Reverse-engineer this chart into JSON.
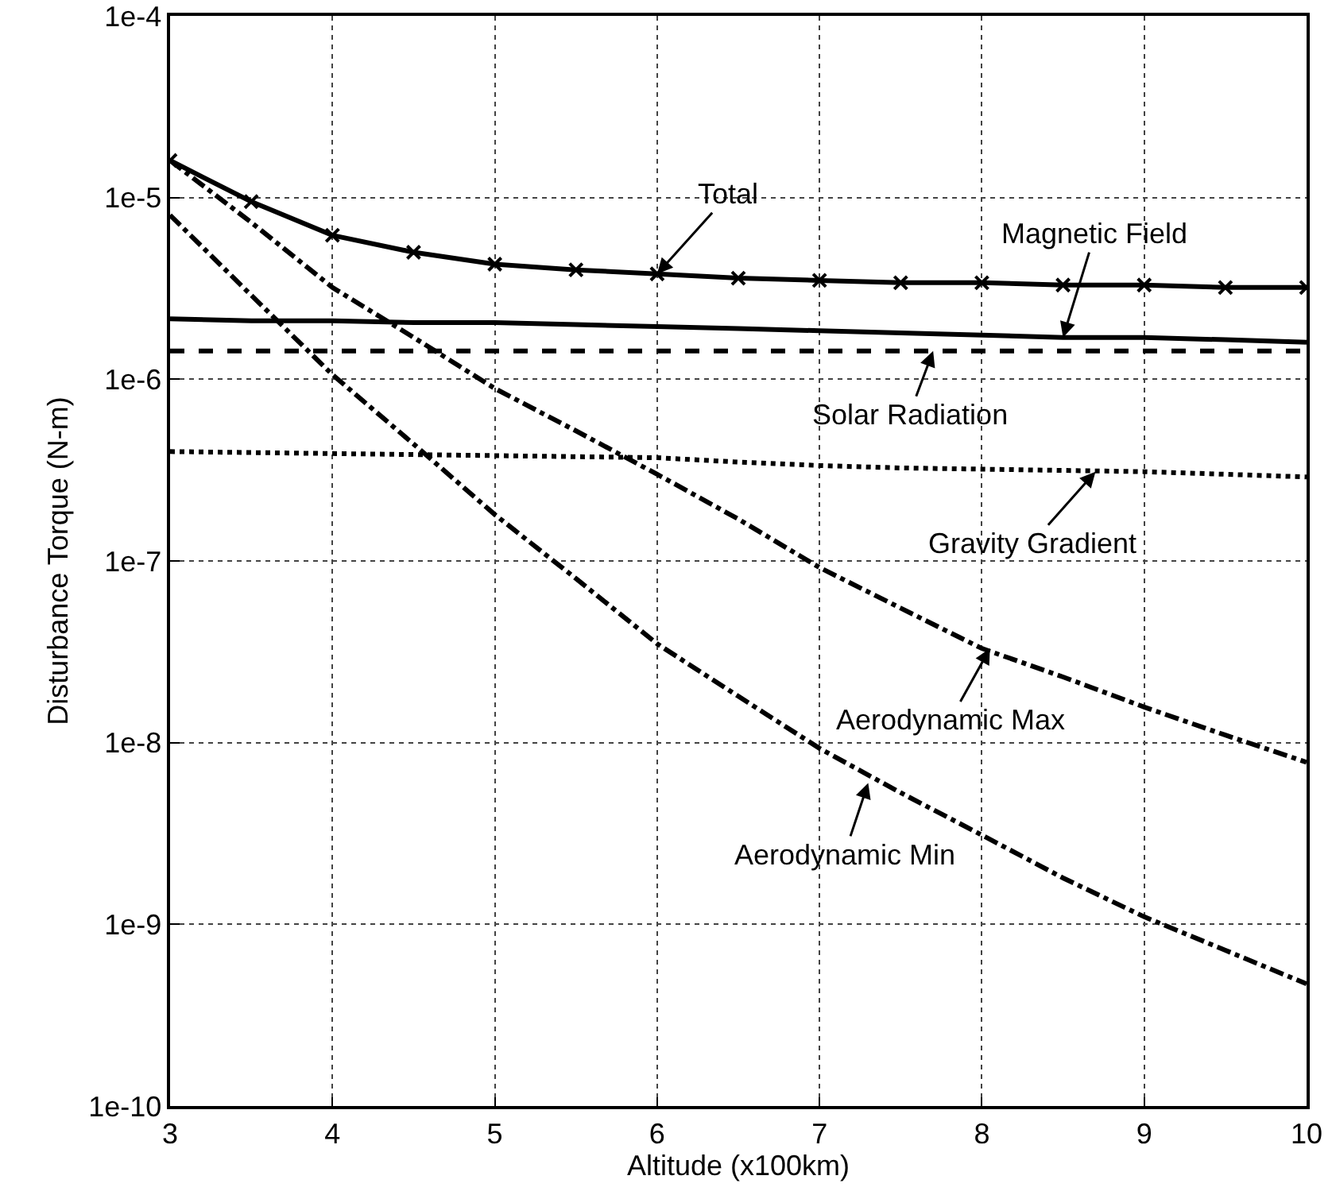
{
  "chart_data": {
    "type": "line",
    "xlabel": "Altitude (x100km)",
    "ylabel": "Disturbance Torque (N-m)",
    "x": [
      3,
      3.5,
      4,
      4.5,
      5,
      5.5,
      6,
      6.5,
      7,
      7.5,
      8,
      8.5,
      9,
      9.5,
      10
    ],
    "series": [
      {
        "color": "#000000",
        "line_style": "solid",
        "marker": "cross",
        "values": [
          1.6e-05,
          9.5e-06,
          6.2e-06,
          5e-06,
          4.3e-06,
          4e-06,
          3.8e-06,
          3.6e-06,
          3.5e-06,
          3.4e-06,
          3.4e-06,
          3.3e-06,
          3.3e-06,
          3.2e-06,
          3.2e-06
        ]
      },
      {
        "color": "#000000",
        "line_style": "solid",
        "values": [
          2.15e-06,
          2.1e-06,
          2.1e-06,
          2.05e-06,
          2.05e-06,
          2e-06,
          1.95e-06,
          1.9e-06,
          1.85e-06,
          1.8e-06,
          1.75e-06,
          1.7e-06,
          1.7e-06,
          1.65e-06,
          1.6e-06
        ]
      },
      {
        "color": "#000000",
        "line_style": "dashed",
        "values": [
          1.43e-06,
          1.43e-06,
          1.43e-06,
          1.43e-06,
          1.43e-06,
          1.43e-06,
          1.43e-06,
          1.43e-06,
          1.43e-06,
          1.43e-06,
          1.43e-06,
          1.43e-06,
          1.43e-06,
          1.43e-06,
          1.43e-06
        ]
      },
      {
        "color": "#000000",
        "line_style": "dotted",
        "values": [
          4e-07,
          3.95e-07,
          3.9e-07,
          3.85e-07,
          3.8e-07,
          3.75e-07,
          3.7e-07,
          3.5e-07,
          3.35e-07,
          3.25e-07,
          3.2e-07,
          3.15e-07,
          3.1e-07,
          3e-07,
          2.9e-07
        ]
      },
      {
        "color": "#000000",
        "line_style": "dashdot",
        "values": [
          1.6e-05,
          7.3e-06,
          3.2e-06,
          1.7e-06,
          8.9e-07,
          5.2e-07,
          3e-07,
          1.7e-07,
          9.2e-08,
          5.5e-08,
          3.3e-08,
          2.3e-08,
          1.57e-08,
          1.1e-08,
          7.8e-09
        ]
      },
      {
        "color": "#000000",
        "line_style": "dashdot",
        "values": [
          8e-06,
          2.9e-06,
          1.06e-06,
          4.4e-07,
          1.8e-07,
          8e-08,
          3.5e-08,
          1.8e-08,
          9.3e-09,
          5.3e-09,
          3.1e-09,
          1.8e-09,
          1.1e-09,
          7.2e-10,
          4.7e-10
        ]
      }
    ],
    "annotations": [
      {
        "text": "Total",
        "x": 6,
        "y": 3.8e-06
      },
      {
        "text": "Magnetic Field",
        "x": 8.5,
        "y": 1.7e-06
      },
      {
        "text": "Solar Radiation",
        "x": 7.7,
        "y": 1.43e-06
      },
      {
        "text": "Gravity Gradient",
        "x": 8.7,
        "y": 3.1e-07
      },
      {
        "text": "Aerodynamic Max",
        "x": 8.05,
        "y": 3.3e-08
      },
      {
        "text": "Aerodynamic Min",
        "x": 7.3,
        "y": 6e-09
      }
    ],
    "xlim": [
      3,
      10
    ],
    "xticks": [
      3,
      4,
      5,
      6,
      7,
      8,
      9,
      10
    ],
    "ylim": [
      1e-10,
      0.0001
    ],
    "yticks": [
      {
        "value": 1e-10,
        "label": "1e-10"
      },
      {
        "value": 1e-09,
        "label": "1e-9"
      },
      {
        "value": 1e-08,
        "label": "1e-8"
      },
      {
        "value": 1e-07,
        "label": "1e-7"
      },
      {
        "value": 1e-06,
        "label": "1e-6"
      },
      {
        "value": 1e-05,
        "label": "1e-5"
      },
      {
        "value": 0.0001,
        "label": "1e-4"
      }
    ],
    "log": true,
    "grid": true
  }
}
